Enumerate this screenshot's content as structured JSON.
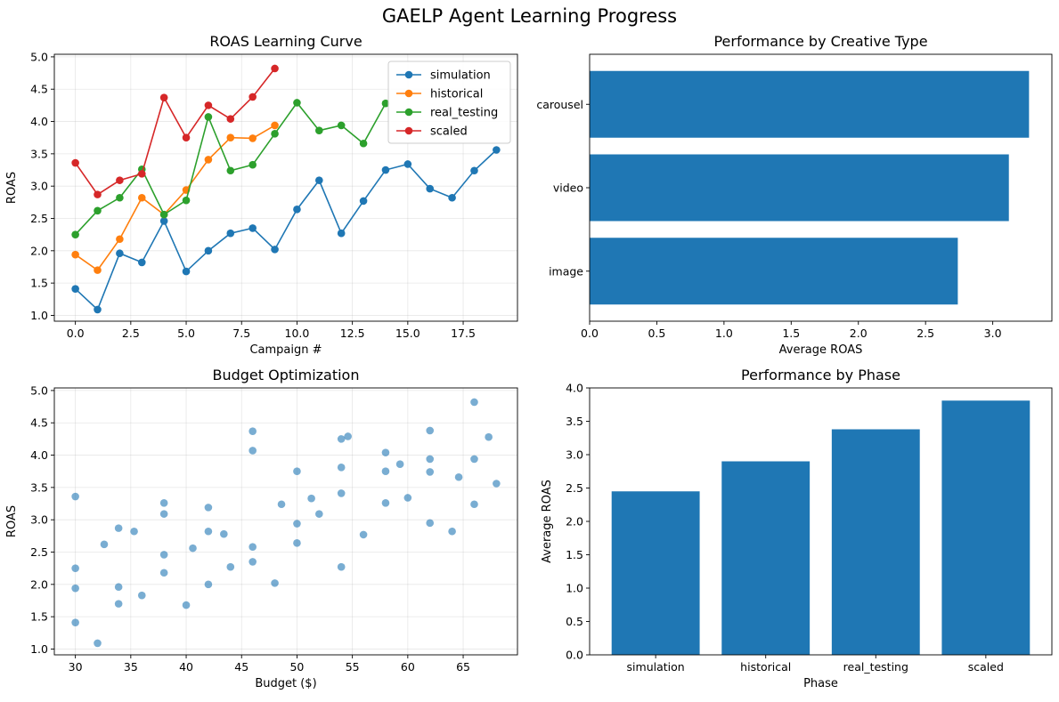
{
  "figure": {
    "title": "GAELP Agent Learning Progress"
  },
  "colors": {
    "blue": "#1f77b4",
    "orange": "#ff7f0e",
    "green": "#2ca02c",
    "red": "#d62728"
  },
  "chart_data": [
    {
      "id": "roas_curve",
      "type": "line",
      "title": "ROAS Learning Curve",
      "xlabel": "Campaign #",
      "ylabel": "ROAS",
      "xlim": [
        -0.95,
        19.95
      ],
      "ylim": [
        0.91,
        5.04
      ],
      "xticks": [
        0.0,
        2.5,
        5.0,
        7.5,
        10.0,
        12.5,
        15.0,
        17.5
      ],
      "yticks": [
        1.0,
        1.5,
        2.0,
        2.5,
        3.0,
        3.5,
        4.0,
        4.5,
        5.0
      ],
      "grid": true,
      "legend": "upper right",
      "series": [
        {
          "name": "simulation",
          "color": "#1f77b4",
          "x": [
            0,
            1,
            2,
            3,
            4,
            5,
            6,
            7,
            8,
            9,
            10,
            11,
            12,
            13,
            14,
            15,
            16,
            17,
            18,
            19
          ],
          "y": [
            1.41,
            1.09,
            1.96,
            1.82,
            2.46,
            1.68,
            2.0,
            2.27,
            2.35,
            2.02,
            2.64,
            3.09,
            2.27,
            2.77,
            3.25,
            3.34,
            2.96,
            2.82,
            3.24,
            3.56
          ]
        },
        {
          "name": "historical",
          "color": "#ff7f0e",
          "x": [
            0,
            1,
            2,
            3,
            4,
            5,
            6,
            7,
            8,
            9
          ],
          "y": [
            1.94,
            1.7,
            2.18,
            2.82,
            2.56,
            2.94,
            3.41,
            3.75,
            3.74,
            3.94
          ]
        },
        {
          "name": "real_testing",
          "color": "#2ca02c",
          "x": [
            0,
            1,
            2,
            3,
            4,
            5,
            6,
            7,
            8,
            9,
            10,
            11,
            12,
            13,
            14
          ],
          "y": [
            2.25,
            2.62,
            2.82,
            3.26,
            2.56,
            2.78,
            4.07,
            3.24,
            3.33,
            3.81,
            4.29,
            3.86,
            3.94,
            3.66,
            4.28
          ]
        },
        {
          "name": "scaled",
          "color": "#d62728",
          "x": [
            0,
            1,
            2,
            3,
            4,
            5,
            6,
            7,
            8,
            9
          ],
          "y": [
            3.36,
            2.87,
            3.09,
            3.19,
            4.37,
            3.75,
            4.25,
            4.04,
            4.38,
            4.82
          ]
        }
      ]
    },
    {
      "id": "creative_type",
      "type": "bar",
      "orientation": "horizontal",
      "title": "Performance by Creative Type",
      "xlabel": "Average ROAS",
      "ylabel": "",
      "categories": [
        "image",
        "video",
        "carousel"
      ],
      "values": [
        2.74,
        3.12,
        3.27
      ],
      "xlim": [
        0,
        3.44
      ],
      "xticks": [
        0.0,
        0.5,
        1.0,
        1.5,
        2.0,
        2.5,
        3.0
      ],
      "color": "#1f77b4",
      "grid": false
    },
    {
      "id": "budget_opt",
      "type": "scatter",
      "title": "Budget Optimization",
      "xlabel": "Budget ($)",
      "ylabel": "ROAS",
      "xlim": [
        28.1,
        69.9
      ],
      "ylim": [
        0.91,
        5.04
      ],
      "xticks": [
        30,
        35,
        40,
        45,
        50,
        55,
        60,
        65
      ],
      "yticks": [
        1.0,
        1.5,
        2.0,
        2.5,
        3.0,
        3.5,
        4.0,
        4.5,
        5.0
      ],
      "color": "#1f77b4",
      "alpha": 0.6,
      "grid": true,
      "points": [
        [
          30,
          1.41
        ],
        [
          30,
          1.94
        ],
        [
          30,
          2.25
        ],
        [
          30,
          3.36
        ],
        [
          32,
          1.09
        ],
        [
          32.6,
          2.62
        ],
        [
          33.9,
          1.96
        ],
        [
          33.9,
          2.87
        ],
        [
          33.9,
          1.7
        ],
        [
          35.3,
          2.82
        ],
        [
          36,
          1.83
        ],
        [
          38,
          2.18
        ],
        [
          38,
          2.46
        ],
        [
          38,
          3.09
        ],
        [
          38,
          3.26
        ],
        [
          40,
          1.68
        ],
        [
          40.6,
          2.56
        ],
        [
          42,
          2.0
        ],
        [
          42,
          2.82
        ],
        [
          42,
          3.19
        ],
        [
          43.4,
          2.78
        ],
        [
          44,
          2.27
        ],
        [
          46,
          2.35
        ],
        [
          46,
          2.58
        ],
        [
          46,
          4.07
        ],
        [
          46,
          4.37
        ],
        [
          48,
          2.02
        ],
        [
          48.6,
          3.24
        ],
        [
          50,
          2.64
        ],
        [
          50,
          2.94
        ],
        [
          50,
          3.75
        ],
        [
          51.3,
          3.33
        ],
        [
          52,
          3.09
        ],
        [
          54,
          2.27
        ],
        [
          54,
          3.41
        ],
        [
          54,
          3.81
        ],
        [
          54,
          4.25
        ],
        [
          54.6,
          4.29
        ],
        [
          56,
          2.77
        ],
        [
          58,
          3.26
        ],
        [
          58,
          3.75
        ],
        [
          58,
          4.04
        ],
        [
          59.3,
          3.86
        ],
        [
          60,
          3.34
        ],
        [
          62,
          2.95
        ],
        [
          62,
          3.74
        ],
        [
          62,
          3.94
        ],
        [
          62,
          4.38
        ],
        [
          64,
          2.82
        ],
        [
          64.6,
          3.66
        ],
        [
          66,
          3.24
        ],
        [
          66,
          3.94
        ],
        [
          66,
          4.82
        ],
        [
          67.3,
          4.28
        ],
        [
          68,
          3.56
        ]
      ]
    },
    {
      "id": "phase_perf",
      "type": "bar",
      "orientation": "vertical",
      "title": "Performance by Phase",
      "xlabel": "Phase",
      "ylabel": "Average ROAS",
      "categories": [
        "simulation",
        "historical",
        "real_testing",
        "scaled"
      ],
      "values": [
        2.45,
        2.9,
        3.38,
        3.81
      ],
      "ylim": [
        0,
        4.0
      ],
      "yticks": [
        0.0,
        0.5,
        1.0,
        1.5,
        2.0,
        2.5,
        3.0,
        3.5,
        4.0
      ],
      "color": "#1f77b4",
      "grid": false
    }
  ]
}
